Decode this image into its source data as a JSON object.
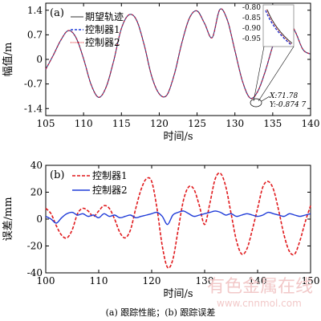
{
  "caption": "(a) 跟踪性能；(b) 跟踪误差",
  "watermark": {
    "line1": "有色金属在线",
    "line2": "www.cnnmol.com"
  },
  "colors": {
    "desired": "#333333",
    "controller1": "#e0191c",
    "controller2": "#1f3bd8"
  },
  "chart_data": [
    {
      "type": "line",
      "panel_tag": "(a)",
      "xlabel": "时间/s",
      "ylabel": "幅值/m",
      "xlim": [
        105,
        140
      ],
      "ylim": [
        -1.6,
        1.6
      ],
      "xticks": [
        105,
        110,
        115,
        120,
        125,
        130,
        135,
        140
      ],
      "yticks": [
        -1.4,
        -0.7,
        0,
        0.7,
        1.4
      ],
      "ytick_labels": [
        "-1.4",
        "-0.7",
        "0",
        "0.7",
        "1.4"
      ],
      "legend": [
        "期望轨迹",
        "控制器1",
        "控制器2"
      ],
      "legend_position": "top-left",
      "x": [
        105,
        106,
        107,
        108,
        109,
        110,
        111,
        112,
        113,
        114,
        115,
        116,
        117,
        118,
        119,
        120,
        121,
        122,
        123,
        124,
        125,
        126,
        127,
        128,
        129,
        130,
        131,
        132,
        133,
        134,
        135,
        136,
        137,
        138,
        139,
        140
      ],
      "series": [
        {
          "name": "期望轨迹",
          "values": [
            -0.28,
            0.12,
            0.55,
            0.82,
            0.62,
            0.02,
            -0.72,
            -1.08,
            -0.78,
            -0.02,
            0.88,
            1.27,
            1.12,
            0.42,
            -0.48,
            -0.98,
            -1.02,
            -0.42,
            0.48,
            1.18,
            1.38,
            1.02,
            0.62,
            1.42,
            1.12,
            0.25,
            -0.62,
            -1.1,
            -0.92,
            -0.35,
            0.38,
            0.95,
            1.12,
            0.78,
            0.28,
            0.15
          ]
        },
        {
          "name": "控制器1",
          "values": [
            -0.28,
            0.12,
            0.55,
            0.82,
            0.62,
            0.02,
            -0.72,
            -1.08,
            -0.78,
            -0.02,
            0.88,
            1.27,
            1.12,
            0.42,
            -0.48,
            -0.98,
            -1.02,
            -0.42,
            0.48,
            1.18,
            1.38,
            1.02,
            0.62,
            1.42,
            1.12,
            0.25,
            -0.62,
            -1.1,
            -0.92,
            -0.35,
            0.38,
            0.95,
            1.12,
            0.78,
            0.28,
            0.15
          ]
        },
        {
          "name": "控制器2",
          "values": [
            -0.28,
            0.12,
            0.55,
            0.82,
            0.62,
            0.02,
            -0.72,
            -1.08,
            -0.78,
            -0.02,
            0.88,
            1.27,
            1.12,
            0.42,
            -0.48,
            -0.98,
            -1.02,
            -0.42,
            0.48,
            1.18,
            1.38,
            1.02,
            0.62,
            1.42,
            1.12,
            0.25,
            -0.62,
            -1.1,
            -0.92,
            -0.35,
            0.38,
            0.95,
            1.12,
            0.78,
            0.28,
            0.15
          ]
        }
      ],
      "inset": {
        "yticks": [
          "-0.80",
          "-0.85",
          "-0.90",
          "-0.95"
        ]
      },
      "annotation": {
        "x_label": "X:71.78",
        "y_label": "Y:-0.874 7"
      }
    },
    {
      "type": "line",
      "panel_tag": "(b)",
      "xlabel": "时间/s",
      "ylabel": "误差/mm",
      "xlim": [
        100,
        150
      ],
      "ylim": [
        -40,
        40
      ],
      "xticks": [
        100,
        110,
        120,
        130,
        140,
        150
      ],
      "yticks": [
        -40,
        -20,
        0,
        20,
        40
      ],
      "legend": [
        "控制器1",
        "控制器2"
      ],
      "legend_position": "top-left",
      "x": [
        100,
        101,
        102,
        103,
        104,
        105,
        106,
        107,
        108,
        109,
        110,
        111,
        112,
        113,
        114,
        115,
        116,
        117,
        118,
        119,
        120,
        121,
        122,
        123,
        124,
        125,
        126,
        127,
        128,
        129,
        130,
        131,
        132,
        133,
        134,
        135,
        136,
        137,
        138,
        139,
        140,
        141,
        142,
        143,
        144,
        145,
        146,
        147,
        148,
        149,
        150
      ],
      "series": [
        {
          "name": "控制器1",
          "values": [
            8,
            4,
            -5,
            -12,
            -14,
            -8,
            4,
            8,
            6,
            2,
            6,
            10,
            8,
            0,
            -10,
            -14,
            -8,
            8,
            22,
            30,
            28,
            8,
            -20,
            -36,
            -30,
            -8,
            14,
            24,
            22,
            10,
            -4,
            12,
            30,
            34,
            24,
            4,
            -16,
            -26,
            -22,
            -8,
            8,
            24,
            28,
            22,
            6,
            -12,
            -24,
            -26,
            -16,
            -2,
            10
          ]
        },
        {
          "name": "控制器2",
          "values": [
            2,
            0,
            -3,
            1,
            4,
            5,
            3,
            4,
            2,
            3,
            1,
            4,
            2,
            3,
            1,
            2,
            3,
            1,
            2,
            3,
            4,
            5,
            2,
            -4,
            3,
            5,
            6,
            4,
            2,
            3,
            4,
            5,
            6,
            5,
            3,
            4,
            2,
            3,
            4,
            3,
            2,
            3,
            5,
            4,
            3,
            2,
            4,
            3,
            2,
            3,
            4
          ]
        }
      ]
    }
  ]
}
